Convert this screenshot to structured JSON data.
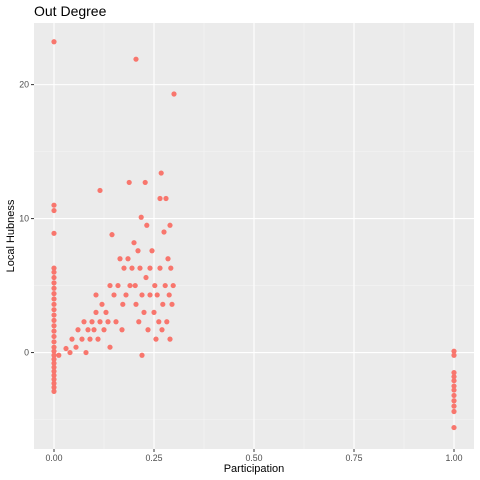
{
  "chart_data": {
    "type": "scatter",
    "title": "Out Degree",
    "xlabel": "Participation",
    "ylabel": "Local Hubness",
    "xlim": [
      -0.05,
      1.05
    ],
    "ylim": [
      -7.2,
      24.6
    ],
    "x_ticks": [
      0.0,
      0.25,
      0.5,
      0.75,
      1.0
    ],
    "x_tick_labels": [
      "0.00",
      "0.25",
      "0.50",
      "0.75",
      "1.00"
    ],
    "y_ticks": [
      0,
      10,
      20
    ],
    "y_tick_labels": [
      "0",
      "10",
      "20"
    ],
    "grid": true,
    "legend": "none",
    "colors": {
      "point": "#F8766D",
      "panel": "#EBEBEB",
      "grid_major": "#FFFFFF",
      "grid_minor": "#F5F5F5"
    },
    "points": [
      {
        "x": 0.0,
        "y": 23.2
      },
      {
        "x": 0.0,
        "y": 11.0
      },
      {
        "x": 0.0,
        "y": 10.6
      },
      {
        "x": 0.0,
        "y": 8.9
      },
      {
        "x": 0.0,
        "y": 6.3
      },
      {
        "x": 0.0,
        "y": 6.0
      },
      {
        "x": 0.0,
        "y": 5.6
      },
      {
        "x": 0.0,
        "y": 5.2
      },
      {
        "x": 0.0,
        "y": 4.8
      },
      {
        "x": 0.0,
        "y": 4.4
      },
      {
        "x": 0.0,
        "y": 4.0
      },
      {
        "x": 0.0,
        "y": 3.6
      },
      {
        "x": 0.0,
        "y": 3.2
      },
      {
        "x": 0.0,
        "y": 2.8
      },
      {
        "x": 0.0,
        "y": 2.4
      },
      {
        "x": 0.0,
        "y": 2.0
      },
      {
        "x": 0.0,
        "y": 1.6
      },
      {
        "x": 0.0,
        "y": 1.2
      },
      {
        "x": 0.0,
        "y": 0.8
      },
      {
        "x": 0.0,
        "y": 0.4
      },
      {
        "x": 0.0,
        "y": 0.1
      },
      {
        "x": 0.0,
        "y": -0.2
      },
      {
        "x": 0.0,
        "y": -0.5
      },
      {
        "x": 0.0,
        "y": -0.8
      },
      {
        "x": 0.0,
        "y": -1.1
      },
      {
        "x": 0.0,
        "y": -1.4
      },
      {
        "x": 0.0,
        "y": -1.7
      },
      {
        "x": 0.0,
        "y": -2.0
      },
      {
        "x": 0.0,
        "y": -2.3
      },
      {
        "x": 0.0,
        "y": -2.6
      },
      {
        "x": 0.0,
        "y": -2.9
      },
      {
        "x": 0.012,
        "y": -0.2
      },
      {
        "x": 0.03,
        "y": 0.3
      },
      {
        "x": 0.04,
        "y": 0.0
      },
      {
        "x": 0.045,
        "y": 1.0
      },
      {
        "x": 0.055,
        "y": 0.4
      },
      {
        "x": 0.06,
        "y": 1.7
      },
      {
        "x": 0.07,
        "y": 1.0
      },
      {
        "x": 0.075,
        "y": 2.3
      },
      {
        "x": 0.08,
        "y": 0.0
      },
      {
        "x": 0.085,
        "y": 1.7
      },
      {
        "x": 0.09,
        "y": 1.0
      },
      {
        "x": 0.095,
        "y": 2.3
      },
      {
        "x": 0.1,
        "y": 1.7
      },
      {
        "x": 0.105,
        "y": 3.0
      },
      {
        "x": 0.105,
        "y": 4.3
      },
      {
        "x": 0.11,
        "y": 1.0
      },
      {
        "x": 0.115,
        "y": 12.1
      },
      {
        "x": 0.115,
        "y": 2.3
      },
      {
        "x": 0.12,
        "y": 3.6
      },
      {
        "x": 0.125,
        "y": 1.7
      },
      {
        "x": 0.13,
        "y": 3.0
      },
      {
        "x": 0.135,
        "y": 2.3
      },
      {
        "x": 0.14,
        "y": 5.0
      },
      {
        "x": 0.14,
        "y": 0.4
      },
      {
        "x": 0.145,
        "y": 8.8
      },
      {
        "x": 0.15,
        "y": 4.3
      },
      {
        "x": 0.155,
        "y": 2.3
      },
      {
        "x": 0.16,
        "y": 5.0
      },
      {
        "x": 0.165,
        "y": 7.0
      },
      {
        "x": 0.17,
        "y": 1.7
      },
      {
        "x": 0.172,
        "y": 3.6
      },
      {
        "x": 0.175,
        "y": 6.3
      },
      {
        "x": 0.18,
        "y": 4.3
      },
      {
        "x": 0.185,
        "y": 7.0
      },
      {
        "x": 0.188,
        "y": 12.7
      },
      {
        "x": 0.19,
        "y": 5.0
      },
      {
        "x": 0.195,
        "y": 6.3
      },
      {
        "x": 0.2,
        "y": 8.2
      },
      {
        "x": 0.203,
        "y": 5.0
      },
      {
        "x": 0.205,
        "y": 21.9
      },
      {
        "x": 0.205,
        "y": 3.6
      },
      {
        "x": 0.21,
        "y": 7.6
      },
      {
        "x": 0.212,
        "y": 2.3
      },
      {
        "x": 0.215,
        "y": 6.3
      },
      {
        "x": 0.218,
        "y": 10.1
      },
      {
        "x": 0.22,
        "y": 4.3
      },
      {
        "x": 0.22,
        "y": -0.2
      },
      {
        "x": 0.225,
        "y": 3.0
      },
      {
        "x": 0.228,
        "y": 12.7
      },
      {
        "x": 0.23,
        "y": 5.6
      },
      {
        "x": 0.232,
        "y": 9.5
      },
      {
        "x": 0.235,
        "y": 1.7
      },
      {
        "x": 0.24,
        "y": 6.3
      },
      {
        "x": 0.24,
        "y": 4.3
      },
      {
        "x": 0.245,
        "y": 7.6
      },
      {
        "x": 0.25,
        "y": 3.0
      },
      {
        "x": 0.252,
        "y": 5.0
      },
      {
        "x": 0.255,
        "y": 1.0
      },
      {
        "x": 0.258,
        "y": 4.3
      },
      {
        "x": 0.262,
        "y": 2.3
      },
      {
        "x": 0.265,
        "y": 11.5
      },
      {
        "x": 0.265,
        "y": 6.3
      },
      {
        "x": 0.268,
        "y": 13.4
      },
      {
        "x": 0.27,
        "y": 1.7
      },
      {
        "x": 0.272,
        "y": 3.6
      },
      {
        "x": 0.275,
        "y": 9.0
      },
      {
        "x": 0.278,
        "y": 5.0
      },
      {
        "x": 0.28,
        "y": 11.5
      },
      {
        "x": 0.282,
        "y": 2.3
      },
      {
        "x": 0.285,
        "y": 7.0
      },
      {
        "x": 0.288,
        "y": 4.3
      },
      {
        "x": 0.29,
        "y": 9.5
      },
      {
        "x": 0.29,
        "y": 1.0
      },
      {
        "x": 0.292,
        "y": 6.3
      },
      {
        "x": 0.295,
        "y": 3.6
      },
      {
        "x": 0.298,
        "y": 5.0
      },
      {
        "x": 0.3,
        "y": 19.3
      },
      {
        "x": 1.0,
        "y": 0.1
      },
      {
        "x": 1.0,
        "y": -0.2
      },
      {
        "x": 1.0,
        "y": -1.5
      },
      {
        "x": 1.0,
        "y": -1.8
      },
      {
        "x": 1.0,
        "y": -2.1
      },
      {
        "x": 1.0,
        "y": -2.5
      },
      {
        "x": 1.0,
        "y": -2.8
      },
      {
        "x": 1.0,
        "y": -3.2
      },
      {
        "x": 1.0,
        "y": -3.6
      },
      {
        "x": 1.0,
        "y": -4.0
      },
      {
        "x": 1.0,
        "y": -4.4
      },
      {
        "x": 1.0,
        "y": -5.6
      }
    ]
  }
}
